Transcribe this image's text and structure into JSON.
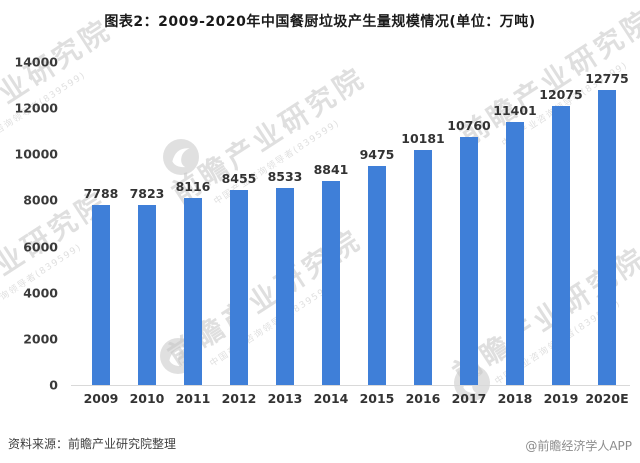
{
  "title": "图表2：2009-2020年中国餐厨垃圾产生量规模情况(单位：万吨)",
  "chart_data": {
    "type": "bar",
    "title": "2009-2020年中国餐厨垃圾产生量规模情况",
    "unit": "万吨",
    "categories": [
      "2009",
      "2010",
      "2011",
      "2012",
      "2013",
      "2014",
      "2015",
      "2016",
      "2017",
      "2018",
      "2019",
      "2020E"
    ],
    "values": [
      7788,
      7823,
      8116,
      8455,
      8533,
      8841,
      9475,
      10181,
      10760,
      11401,
      12075,
      12775
    ],
    "xlabel": "",
    "ylabel": "",
    "ylim": [
      0,
      14000
    ],
    "yticks": [
      0,
      2000,
      4000,
      6000,
      8000,
      10000,
      12000,
      14000
    ],
    "bar_color": "#3F7FD8",
    "grid": false,
    "legend": "none",
    "value_labels_shown": true
  },
  "watermark": {
    "text": "前瞻产业研究院",
    "subtext": "中国产业咨询领导者(839599)"
  },
  "footer": {
    "source": "资料来源：前瞻产业研究院整理",
    "credit": "@前瞻经济学人APP"
  },
  "colors": {
    "bar": "#3F7FD8",
    "axis_line": "#d9d9d9",
    "text_dark": "#333333",
    "watermark": "#c6c6c6"
  }
}
